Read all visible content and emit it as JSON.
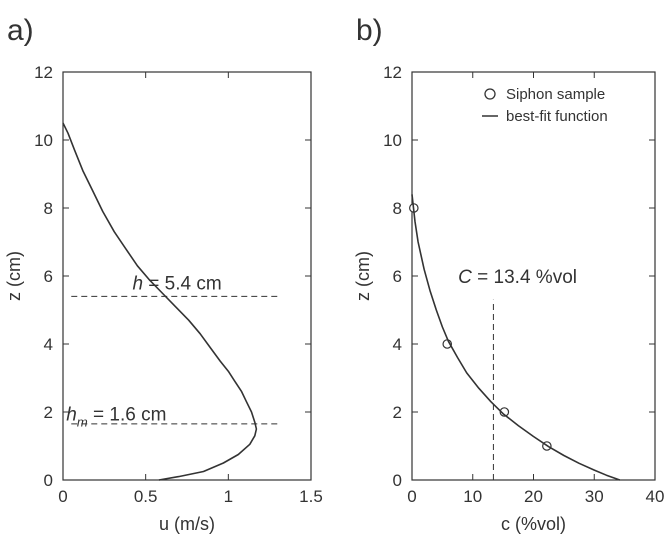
{
  "chart_data": [
    {
      "type": "line",
      "panel_label": "a)",
      "xlabel": "u (m/s)",
      "ylabel": "z (cm)",
      "xlim": [
        0,
        1.5
      ],
      "ylim": [
        0,
        12
      ],
      "xticks": [
        "0",
        "0.5",
        "1",
        "1.5"
      ],
      "yticks": [
        "0",
        "2",
        "4",
        "6",
        "8",
        "10",
        "12"
      ],
      "grid": false,
      "series": [
        {
          "style": "solid",
          "points": [
            [
              0.58,
              0.0
            ],
            [
              0.7,
              0.1
            ],
            [
              0.85,
              0.25
            ],
            [
              0.97,
              0.5
            ],
            [
              1.06,
              0.75
            ],
            [
              1.13,
              1.05
            ],
            [
              1.16,
              1.3
            ],
            [
              1.17,
              1.5
            ],
            [
              1.16,
              1.7
            ],
            [
              1.14,
              2.0
            ],
            [
              1.11,
              2.3
            ],
            [
              1.08,
              2.6
            ],
            [
              1.04,
              2.9
            ],
            [
              1.0,
              3.2
            ],
            [
              0.95,
              3.5
            ],
            [
              0.89,
              3.9
            ],
            [
              0.83,
              4.3
            ],
            [
              0.76,
              4.7
            ],
            [
              0.68,
              5.1
            ],
            [
              0.6,
              5.5
            ],
            [
              0.52,
              5.9
            ],
            [
              0.45,
              6.3
            ],
            [
              0.38,
              6.8
            ],
            [
              0.31,
              7.3
            ],
            [
              0.24,
              7.9
            ],
            [
              0.18,
              8.5
            ],
            [
              0.12,
              9.1
            ],
            [
              0.07,
              9.7
            ],
            [
              0.03,
              10.2
            ],
            [
              0.0,
              10.5
            ]
          ]
        }
      ],
      "reference_lines": [
        {
          "orientation": "horizontal",
          "y": 5.4,
          "x_range": [
            0.05,
            1.3
          ],
          "style": "dashed"
        },
        {
          "orientation": "horizontal",
          "y": 1.65,
          "x_range": [
            0.05,
            1.3
          ],
          "style": "dashed"
        }
      ],
      "annotations": [
        {
          "symbol": "h",
          "subscript": "",
          "rest": " = 5.4 cm",
          "x": 0.42,
          "y": 5.6
        },
        {
          "symbol": "h",
          "subscript": "m",
          "rest": " = 1.6 cm",
          "x": 0.02,
          "y": 1.75
        }
      ]
    },
    {
      "type": "scatter",
      "panel_label": "b)",
      "xlabel": "c (%vol)",
      "ylabel": "z (cm)",
      "xlim": [
        0,
        40
      ],
      "ylim": [
        0,
        12
      ],
      "xticks": [
        "0",
        "10",
        "20",
        "30",
        "40"
      ],
      "yticks": [
        "0",
        "2",
        "4",
        "6",
        "8",
        "10",
        "12"
      ],
      "grid": false,
      "legend": {
        "position": "top-right",
        "entries": [
          "Siphon sample",
          "best-fit function"
        ]
      },
      "series": [
        {
          "style": "markers",
          "points": [
            [
              0.3,
              8.0
            ],
            [
              5.8,
              4.0
            ],
            [
              15.2,
              2.0
            ],
            [
              22.2,
              1.0
            ]
          ]
        },
        {
          "style": "solid",
          "points": [
            [
              0.0,
              8.4
            ],
            [
              0.5,
              7.6
            ],
            [
              1.0,
              7.0
            ],
            [
              2.0,
              6.2
            ],
            [
              3.0,
              5.55
            ],
            [
              4.0,
              5.0
            ],
            [
              5.0,
              4.5
            ],
            [
              6.0,
              4.08
            ],
            [
              7.5,
              3.6
            ],
            [
              9.0,
              3.15
            ],
            [
              11.0,
              2.7
            ],
            [
              13.0,
              2.3
            ],
            [
              15.0,
              1.95
            ],
            [
              17.5,
              1.6
            ],
            [
              20.0,
              1.28
            ],
            [
              22.5,
              0.98
            ],
            [
              25.0,
              0.72
            ],
            [
              27.5,
              0.49
            ],
            [
              30.0,
              0.29
            ],
            [
              32.0,
              0.14
            ],
            [
              34.2,
              0.0
            ]
          ]
        }
      ],
      "reference_lines": [
        {
          "orientation": "vertical",
          "x": 13.4,
          "y_range": [
            0,
            5.3
          ],
          "style": "dashed"
        }
      ],
      "annotations": [
        {
          "symbol": "C",
          "subscript": "",
          "rest": " = 13.4 %vol",
          "x": 7.6,
          "y": 5.8
        }
      ]
    }
  ]
}
